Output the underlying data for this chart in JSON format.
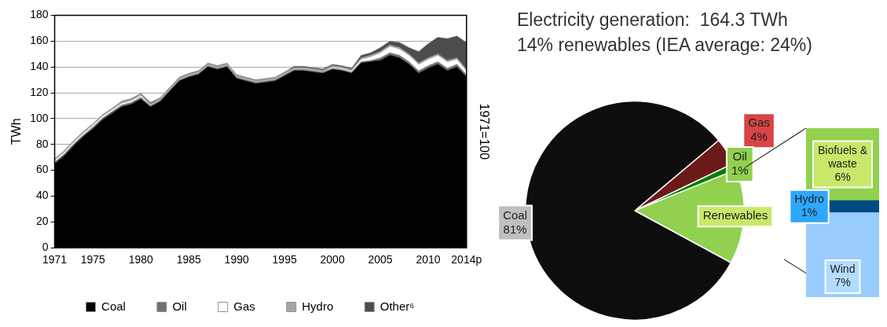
{
  "chart_data": [
    {
      "type": "area",
      "stacked": true,
      "ylabel": "TWh",
      "y2label": "1971=100",
      "x": [
        1971,
        1972,
        1973,
        1974,
        1975,
        1976,
        1977,
        1978,
        1979,
        1980,
        1981,
        1982,
        1983,
        1984,
        1985,
        1986,
        1987,
        1988,
        1989,
        1990,
        1991,
        1992,
        1993,
        1994,
        1995,
        1996,
        1997,
        1998,
        1999,
        2000,
        2001,
        2002,
        2003,
        2004,
        2005,
        2006,
        2007,
        2008,
        2009,
        2010,
        2011,
        2012,
        2013,
        2014
      ],
      "xlim": [
        1971,
        2014
      ],
      "xticks": [
        1971,
        1975,
        1980,
        1985,
        1990,
        1995,
        2000,
        2005,
        2010,
        {
          "value": 2014,
          "label": "2014p"
        }
      ],
      "ylim": [
        0,
        180
      ],
      "yticks": [
        0,
        20,
        40,
        60,
        80,
        100,
        120,
        140,
        160,
        180
      ],
      "grid": "y",
      "legend": "bottom",
      "series": [
        {
          "name": "Coal",
          "color": "#000000",
          "values": [
            65,
            71,
            79,
            86,
            92,
            99,
            104,
            109,
            111,
            115,
            109,
            113,
            121,
            129,
            132,
            134,
            140,
            138,
            140,
            131,
            129,
            127,
            128,
            129,
            133,
            137,
            137,
            136,
            135,
            138,
            137,
            135,
            143,
            144,
            145,
            149,
            147,
            142,
            135,
            139,
            142,
            137,
            140,
            132
          ]
        },
        {
          "name": "Oil",
          "color": "#707070",
          "values": [
            1.5,
            1.5,
            1.5,
            1.5,
            1.5,
            1.5,
            1.5,
            1.5,
            1.5,
            1.5,
            1,
            1,
            1,
            1,
            1,
            1,
            1,
            1,
            1,
            1,
            1,
            1,
            1,
            1,
            1,
            1,
            1,
            1,
            1,
            1,
            1,
            1,
            1,
            1,
            2,
            2,
            2,
            2,
            2,
            2,
            2,
            2,
            2,
            2
          ]
        },
        {
          "name": "Gas",
          "color": "#ffffff",
          "values": [
            1.5,
            1.5,
            1.5,
            1.5,
            1.5,
            1.5,
            1.5,
            1.5,
            1.5,
            1.5,
            0.5,
            0.5,
            0.5,
            0.5,
            0.5,
            0.5,
            0.5,
            0.5,
            0.5,
            0.5,
            0.5,
            0.5,
            0.5,
            0.5,
            0.5,
            0.5,
            0.5,
            0.5,
            0.5,
            1,
            1,
            1,
            2,
            3,
            4,
            5,
            5,
            5,
            5,
            5,
            5,
            5,
            4,
            3
          ]
        },
        {
          "name": "Hydro",
          "color": "#a6a6a6",
          "values": [
            1,
            1,
            1,
            1,
            1,
            1,
            1,
            1,
            1,
            1,
            1,
            1,
            1,
            1,
            1,
            1,
            1,
            1,
            1,
            1,
            1,
            1,
            1,
            1,
            1,
            1,
            1,
            1,
            1,
            1,
            1,
            1,
            1,
            1,
            1,
            1,
            1,
            1,
            1,
            1,
            1,
            1,
            1,
            1
          ]
        },
        {
          "name": "Other⁶",
          "color": "#4d4d4d",
          "values": [
            0,
            0,
            0,
            0,
            0,
            0,
            0,
            0.5,
            0.5,
            0.5,
            1,
            0.5,
            0.5,
            0.5,
            0.5,
            0.5,
            0.5,
            0.5,
            0.5,
            0.5,
            0.5,
            0.5,
            0.5,
            0.5,
            0.5,
            1,
            1,
            1,
            1,
            1,
            1,
            1,
            2,
            2,
            3,
            3,
            4,
            5,
            9,
            11,
            13,
            17,
            17,
            21
          ]
        }
      ]
    },
    {
      "type": "pie",
      "title": "Electricity generation:  164.3 TWh",
      "subtitle": "14% renewables (IEA average: 24%)",
      "categories": [
        "Gas",
        "Oil",
        "Renewables",
        "Coal"
      ],
      "values": [
        4,
        1,
        14,
        81
      ],
      "colors": [
        "#6b1a1a",
        "#008000",
        "#92d050",
        "#0d0d0d"
      ],
      "value_labels": [
        "4%",
        "1%",
        null,
        "81%"
      ],
      "legend": false
    },
    {
      "type": "bar",
      "stacked": true,
      "categories": [
        null
      ],
      "tick_labels": false,
      "legend": false,
      "series": [
        {
          "name": "Wind",
          "color": "#99ccff",
          "values": [
            7
          ],
          "value_labels": [
            "7%"
          ]
        },
        {
          "name": "Hydro",
          "color": "#004a80",
          "values": [
            1
          ],
          "value_labels": [
            "1%"
          ]
        },
        {
          "name": "Biofuels & waste",
          "color": "#92d050",
          "values": [
            6
          ],
          "value_labels": [
            "6%"
          ]
        }
      ]
    }
  ]
}
